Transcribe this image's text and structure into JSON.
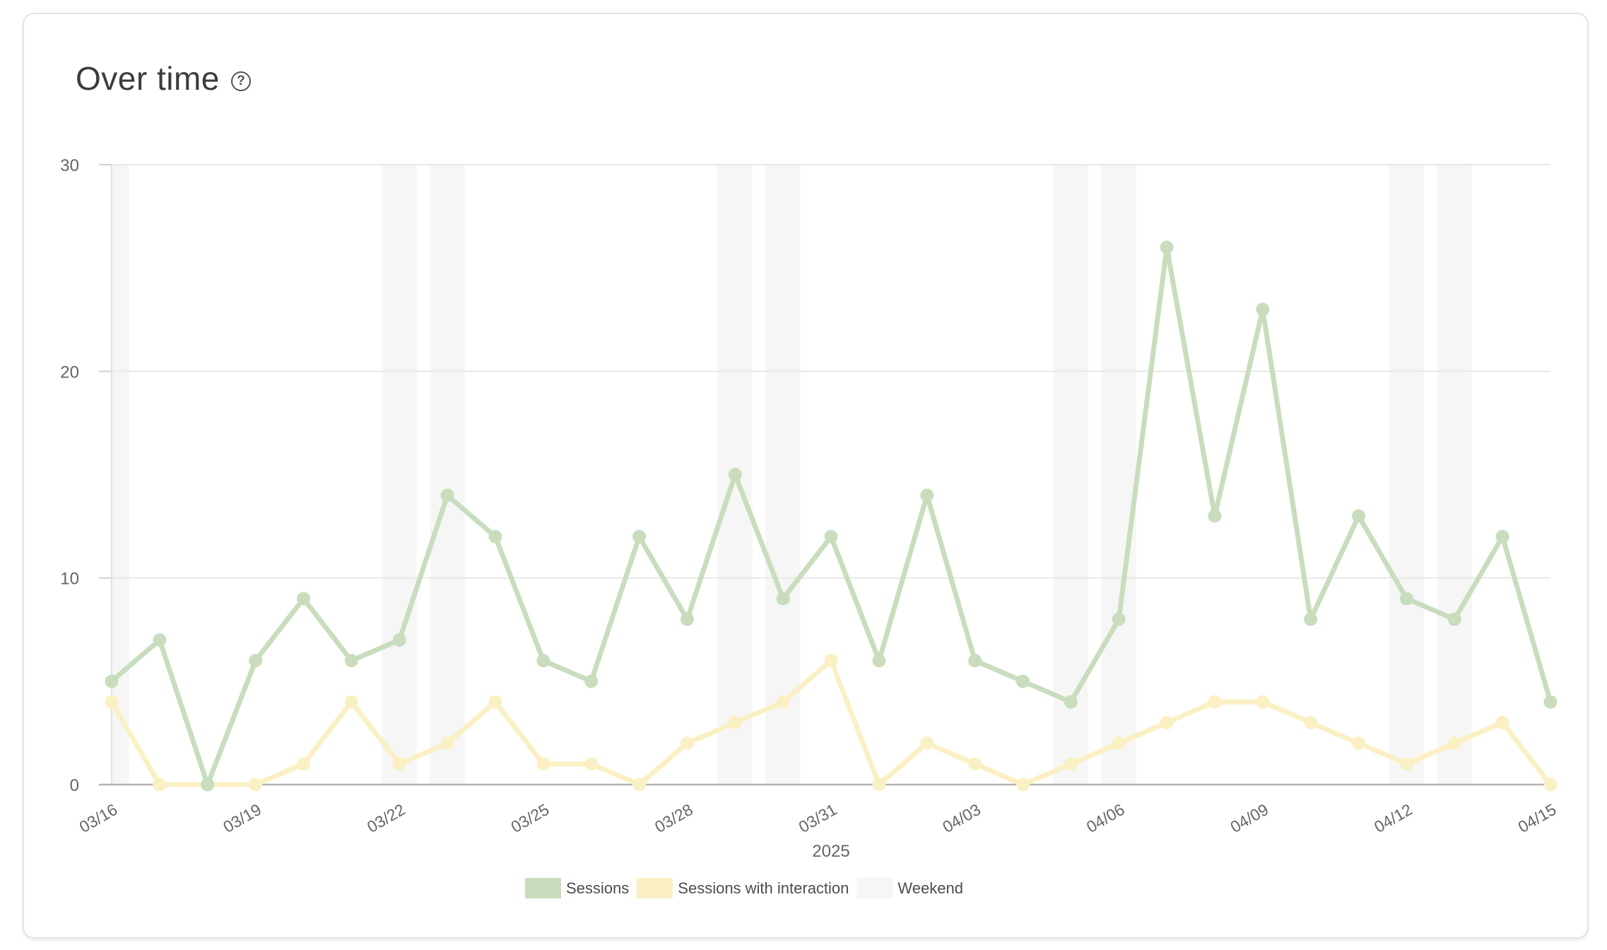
{
  "card": {
    "title": "Over time",
    "help_icon": "?"
  },
  "chart_data": {
    "type": "line",
    "title": "Over time",
    "x": [
      "03/16",
      "03/17",
      "03/18",
      "03/19",
      "03/20",
      "03/21",
      "03/22",
      "03/23",
      "03/24",
      "03/25",
      "03/26",
      "03/27",
      "03/28",
      "03/29",
      "03/30",
      "03/31",
      "04/01",
      "04/02",
      "04/03",
      "04/04",
      "04/05",
      "04/06",
      "04/07",
      "04/08",
      "04/09",
      "04/10",
      "04/11",
      "04/12",
      "04/13",
      "04/14",
      "04/15"
    ],
    "x_tick_labels": [
      "03/16",
      "03/19",
      "03/22",
      "03/25",
      "03/28",
      "03/31",
      "04/03",
      "04/06",
      "04/09",
      "04/12",
      "04/15"
    ],
    "x_tick_every": 3,
    "x_year_label": "2025",
    "y_ticks": [
      0,
      10,
      20,
      30
    ],
    "ylim": [
      0,
      30
    ],
    "grid": true,
    "legend_position": "bottom",
    "series": [
      {
        "name": "Sessions",
        "color": "#c8ddbe",
        "values": [
          5,
          7,
          0,
          6,
          9,
          6,
          7,
          14,
          12,
          6,
          5,
          12,
          8,
          15,
          9,
          12,
          6,
          14,
          6,
          5,
          4,
          8,
          26,
          13,
          23,
          8,
          13,
          9,
          8,
          12,
          4
        ]
      },
      {
        "name": "Sessions with interaction",
        "color": "#fbf0c4",
        "values": [
          4,
          0,
          0,
          0,
          1,
          4,
          1,
          2,
          4,
          1,
          1,
          0,
          2,
          3,
          4,
          6,
          0,
          2,
          1,
          0,
          1,
          2,
          3,
          4,
          4,
          3,
          2,
          1,
          2,
          3,
          0
        ]
      }
    ],
    "weekend": {
      "label": "Weekend",
      "color": "#f6f6f6",
      "dates": [
        "03/16",
        "03/22",
        "03/23",
        "03/29",
        "03/30",
        "04/05",
        "04/06",
        "04/12",
        "04/13"
      ]
    },
    "style": {
      "gridline_color": "#e8e8e8",
      "y_axis_color": "#e2e2e2",
      "tick_color": "#cfcfcf",
      "x_axis_color": "#b3b3b3",
      "tick_label_color": "#666666"
    }
  }
}
